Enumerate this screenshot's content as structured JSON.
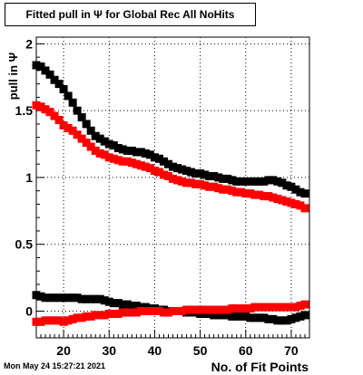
{
  "title": "Fitted pull in Ψ for Global Rec All NoHits",
  "footer": "Mon May 24 15:27:21 2021",
  "chart_data": {
    "type": "scatter",
    "title": "Fitted pull in Ψ for Global Rec All NoHits",
    "xlabel": "No. of Fit Points",
    "ylabel": "pull in Ψ",
    "xlim": [
      14,
      74
    ],
    "ylim": [
      -0.2,
      2.05
    ],
    "xticks": [
      20,
      30,
      40,
      50,
      60,
      70
    ],
    "yticks": [
      0,
      0.5,
      1,
      1.5,
      2
    ],
    "grid": true,
    "x": [
      14,
      15,
      16,
      17,
      18,
      19,
      20,
      21,
      22,
      23,
      24,
      25,
      26,
      27,
      28,
      29,
      30,
      31,
      32,
      33,
      34,
      35,
      36,
      37,
      38,
      39,
      40,
      41,
      42,
      43,
      44,
      45,
      46,
      47,
      48,
      49,
      50,
      51,
      52,
      53,
      54,
      55,
      56,
      57,
      58,
      59,
      60,
      61,
      62,
      63,
      64,
      65,
      66,
      67,
      68,
      69,
      70,
      71,
      72,
      73
    ],
    "series": [
      {
        "color": "#000000",
        "values": [
          1.84,
          1.83,
          1.8,
          1.77,
          1.73,
          1.7,
          1.66,
          1.61,
          1.56,
          1.5,
          1.45,
          1.4,
          1.35,
          1.31,
          1.29,
          1.27,
          1.25,
          1.24,
          1.22,
          1.21,
          1.2,
          1.2,
          1.19,
          1.19,
          1.18,
          1.17,
          1.15,
          1.14,
          1.12,
          1.1,
          1.08,
          1.07,
          1.06,
          1.05,
          1.04,
          1.03,
          1.03,
          1.02,
          1.01,
          1.01,
          1.0,
          0.99,
          0.99,
          0.98,
          0.97,
          0.97,
          0.97,
          0.97,
          0.97,
          0.97,
          0.97,
          0.98,
          0.98,
          0.97,
          0.96,
          0.94,
          0.93,
          0.91,
          0.89,
          0.88
        ]
      },
      {
        "color": "#ff0000",
        "values": [
          1.54,
          1.53,
          1.51,
          1.49,
          1.46,
          1.43,
          1.39,
          1.37,
          1.35,
          1.32,
          1.29,
          1.26,
          1.23,
          1.2,
          1.18,
          1.17,
          1.15,
          1.14,
          1.13,
          1.12,
          1.12,
          1.11,
          1.1,
          1.09,
          1.08,
          1.07,
          1.05,
          1.04,
          1.02,
          1.01,
          0.99,
          0.98,
          0.97,
          0.96,
          0.96,
          0.95,
          0.95,
          0.94,
          0.93,
          0.93,
          0.92,
          0.91,
          0.91,
          0.9,
          0.89,
          0.89,
          0.88,
          0.88,
          0.87,
          0.87,
          0.86,
          0.86,
          0.85,
          0.84,
          0.83,
          0.82,
          0.81,
          0.8,
          0.79,
          0.77
        ]
      },
      {
        "color": "#000000",
        "values": [
          0.12,
          0.11,
          0.1,
          0.1,
          0.1,
          0.1,
          0.1,
          0.1,
          0.1,
          0.1,
          0.09,
          0.09,
          0.09,
          0.09,
          0.09,
          0.08,
          0.07,
          0.06,
          0.06,
          0.05,
          0.05,
          0.04,
          0.04,
          0.03,
          0.03,
          0.02,
          0.02,
          0.01,
          0.01,
          0.0,
          0.0,
          0.0,
          0.0,
          -0.01,
          -0.01,
          -0.01,
          -0.02,
          -0.02,
          -0.02,
          -0.03,
          -0.03,
          -0.03,
          -0.03,
          -0.04,
          -0.04,
          -0.04,
          -0.04,
          -0.05,
          -0.05,
          -0.05,
          -0.05,
          -0.06,
          -0.06,
          -0.07,
          -0.07,
          -0.07,
          -0.06,
          -0.05,
          -0.04,
          -0.03
        ]
      },
      {
        "color": "#ff0000",
        "values": [
          -0.08,
          -0.08,
          -0.07,
          -0.07,
          -0.07,
          -0.07,
          -0.08,
          -0.07,
          -0.06,
          -0.05,
          -0.05,
          -0.04,
          -0.04,
          -0.03,
          -0.03,
          -0.03,
          -0.02,
          -0.02,
          -0.02,
          -0.01,
          -0.01,
          -0.01,
          -0.01,
          0.0,
          0.0,
          0.0,
          0.0,
          0.0,
          -0.01,
          -0.01,
          0.0,
          0.0,
          0.0,
          0.01,
          0.01,
          0.01,
          0.01,
          0.01,
          0.01,
          0.01,
          0.01,
          0.01,
          0.01,
          0.02,
          0.02,
          0.02,
          0.02,
          0.02,
          0.03,
          0.03,
          0.03,
          0.03,
          0.03,
          0.03,
          0.03,
          0.03,
          0.03,
          0.03,
          0.04,
          0.05
        ]
      }
    ]
  }
}
